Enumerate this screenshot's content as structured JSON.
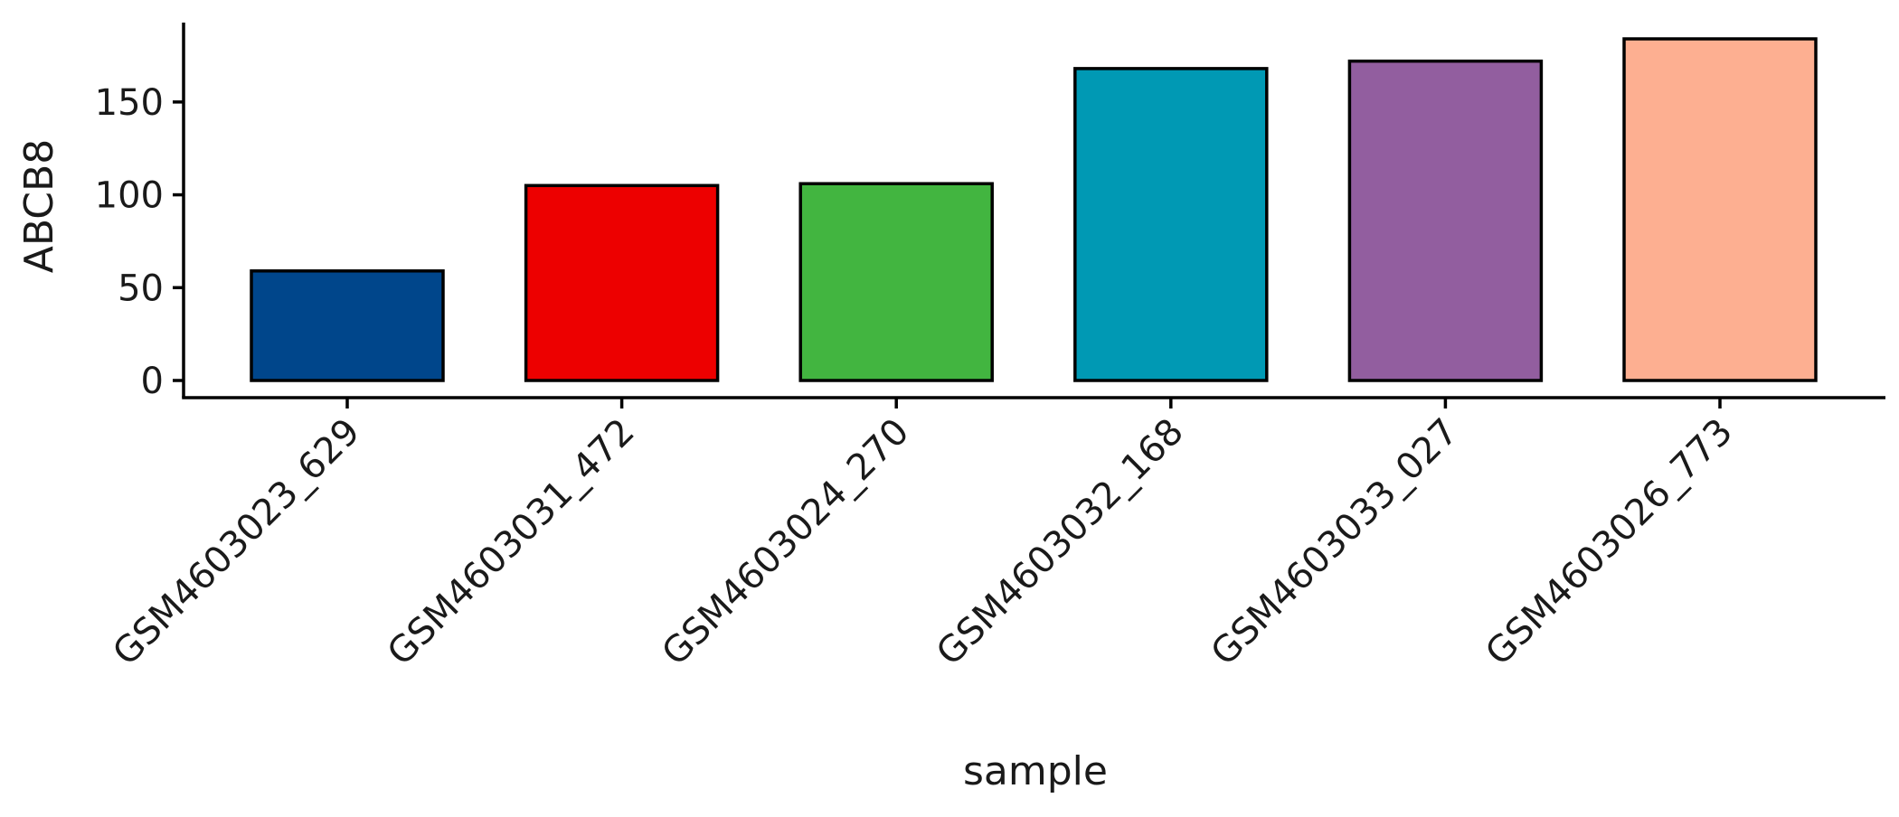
{
  "chart_data": {
    "type": "bar",
    "xlabel": "sample",
    "ylabel": "ABCB8",
    "categories": [
      "GSM4603023_629",
      "GSM4603031_472",
      "GSM4603024_270",
      "GSM4603032_168",
      "GSM4603033_027",
      "GSM4603026_773"
    ],
    "values": [
      59,
      105,
      106,
      168,
      172,
      184
    ],
    "colors": [
      "#00468B",
      "#ED0000",
      "#42B540",
      "#0099B4",
      "#925E9F",
      "#FDAF91"
    ],
    "ylim": [
      0,
      184
    ],
    "yticks": [
      0,
      50,
      100,
      150
    ],
    "ytick_labels": [
      "0",
      "50",
      "100",
      "150"
    ],
    "grid": false,
    "legend": "none"
  }
}
